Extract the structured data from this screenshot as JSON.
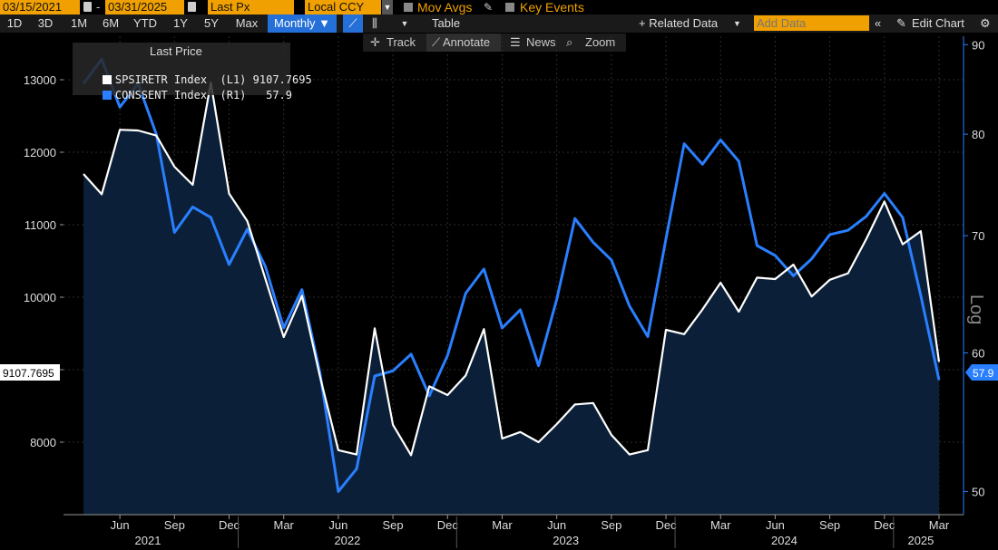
{
  "header": {
    "start_date": "03/15/2021",
    "end_date": "03/31/2025",
    "field": "Last Px",
    "currency": "Local CCY",
    "mov_avgs": "Mov Avgs",
    "key_events": "Key Events"
  },
  "range_buttons": [
    "1D",
    "3D",
    "1M",
    "6M",
    "YTD",
    "1Y",
    "5Y",
    "Max"
  ],
  "frequency": "Monthly ▼",
  "table_label": "Table",
  "related_data": "+ Related Data",
  "add_data_placeholder": "Add Data",
  "edit_chart": "Edit Chart",
  "toolbar2": {
    "track": "Track",
    "annotate": "Annotate",
    "news": "News",
    "zoom": "Zoom"
  },
  "legend": {
    "header": "Last Price",
    "rows": [
      {
        "label": "SPSIRETR Index  (L1)",
        "value": "9107.7695"
      },
      {
        "label": "CONSSENT Index  (R1)",
        "value": "57.9"
      }
    ]
  },
  "chart_data": {
    "type": "line",
    "scale_right_label": "Log",
    "x": [
      "2021-04",
      "2021-05",
      "2021-06",
      "2021-07",
      "2021-08",
      "2021-09",
      "2021-10",
      "2021-11",
      "2021-12",
      "2022-01",
      "2022-02",
      "2022-03",
      "2022-04",
      "2022-05",
      "2022-06",
      "2022-07",
      "2022-08",
      "2022-09",
      "2022-10",
      "2022-11",
      "2022-12",
      "2023-01",
      "2023-02",
      "2023-03",
      "2023-04",
      "2023-05",
      "2023-06",
      "2023-07",
      "2023-08",
      "2023-09",
      "2023-10",
      "2023-11",
      "2023-12",
      "2024-01",
      "2024-02",
      "2024-03",
      "2024-04",
      "2024-05",
      "2024-06",
      "2024-07",
      "2024-08",
      "2024-09",
      "2024-10",
      "2024-11",
      "2024-12",
      "2025-01",
      "2025-02",
      "2025-03"
    ],
    "series": [
      {
        "name": "SPSIRETR Index (L1)",
        "axis": "left",
        "color": "#ffffff",
        "fill": "#0b2038",
        "values": [
          11700,
          11420,
          12310,
          12300,
          12230,
          11800,
          11550,
          12960,
          11430,
          11050,
          10250,
          9450,
          10020,
          8900,
          7890,
          7830,
          9570,
          8240,
          7820,
          8770,
          8650,
          8920,
          9560,
          8050,
          8140,
          8000,
          8250,
          8520,
          8540,
          8100,
          7830,
          7890,
          9550,
          9490,
          9830,
          10200,
          9800,
          10270,
          10250,
          10450,
          10010,
          10240,
          10330,
          10800,
          11320,
          10730,
          10910,
          9107.7695
        ]
      },
      {
        "name": "CONSSENT Index (R1)",
        "axis": "right",
        "color": "#2a7fff",
        "values": [
          85.5,
          88.3,
          82.9,
          85.5,
          80.0,
          70.3,
          72.7,
          71.7,
          67.4,
          70.6,
          67.2,
          62.0,
          65.2,
          58.4,
          50.0,
          51.5,
          58.2,
          58.6,
          59.9,
          56.7,
          59.8,
          64.9,
          67.0,
          62.0,
          63.5,
          59.0,
          64.4,
          71.6,
          69.4,
          67.8,
          63.8,
          61.3,
          69.7,
          79.0,
          76.9,
          79.4,
          77.2,
          69.1,
          68.2,
          66.4,
          67.9,
          70.1,
          70.5,
          71.8,
          74.0,
          71.7,
          64.7,
          57.9
        ]
      }
    ],
    "y_left": {
      "ticks": [
        8000,
        9000,
        10000,
        11000,
        12000,
        13000
      ],
      "range": [
        7000,
        13600
      ]
    },
    "y_right": {
      "scale": "log",
      "ticks": [
        50,
        60,
        70,
        80,
        90
      ],
      "range": [
        48.5,
        91
      ]
    },
    "x_ticks": [
      {
        "label": "Jun",
        "at": "2021-06"
      },
      {
        "label": "Sep",
        "at": "2021-09"
      },
      {
        "label": "Dec",
        "at": "2021-12"
      },
      {
        "label": "Mar",
        "at": "2022-03"
      },
      {
        "label": "Jun",
        "at": "2022-06"
      },
      {
        "label": "Sep",
        "at": "2022-09"
      },
      {
        "label": "Dec",
        "at": "2022-12"
      },
      {
        "label": "Mar",
        "at": "2023-03"
      },
      {
        "label": "Jun",
        "at": "2023-06"
      },
      {
        "label": "Sep",
        "at": "2023-09"
      },
      {
        "label": "Dec",
        "at": "2023-12"
      },
      {
        "label": "Mar",
        "at": "2024-03"
      },
      {
        "label": "Jun",
        "at": "2024-06"
      },
      {
        "label": "Sep",
        "at": "2024-09"
      },
      {
        "label": "Dec",
        "at": "2024-12"
      },
      {
        "label": "Mar",
        "at": "2025-03"
      }
    ],
    "years": [
      "2021",
      "2022",
      "2023",
      "2024",
      "2025"
    ],
    "left_last_label": "9107.7695",
    "right_last_label": "57.9",
    "grid": true
  }
}
